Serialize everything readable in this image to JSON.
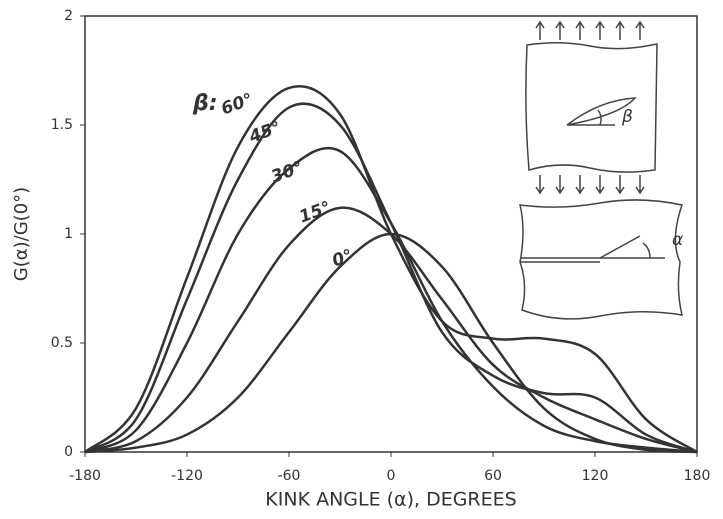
{
  "chart_data": {
    "type": "line",
    "x_label": "KINK ANGLE (α), DEGREES",
    "y_label": "G(α)/G(0°)",
    "series_label_prefix": "β:",
    "inset_labels": [
      "β",
      "α"
    ],
    "x": [
      -180,
      -150,
      -120,
      -90,
      -60,
      -30,
      0,
      30,
      60,
      90,
      120,
      150,
      180
    ],
    "series": [
      {
        "name": "0°",
        "color": "#333333",
        "values": [
          0,
          0.02,
          0.08,
          0.25,
          0.55,
          0.85,
          1.0,
          0.85,
          0.5,
          0.2,
          0.06,
          0.01,
          0
        ]
      },
      {
        "name": "15°",
        "color": "#333333",
        "values": [
          0,
          0.05,
          0.25,
          0.6,
          0.95,
          1.12,
          1.0,
          0.7,
          0.4,
          0.25,
          0.15,
          0.06,
          0
        ]
      },
      {
        "name": "30°",
        "color": "#333333",
        "values": [
          0,
          0.1,
          0.5,
          1.0,
          1.3,
          1.38,
          1.05,
          0.6,
          0.3,
          0.12,
          0.05,
          0.02,
          0
        ]
      },
      {
        "name": "45°",
        "color": "#333333",
        "values": [
          0,
          0.15,
          0.7,
          1.25,
          1.58,
          1.5,
          1.05,
          0.55,
          0.35,
          0.27,
          0.25,
          0.08,
          0
        ]
      },
      {
        "name": "60°",
        "color": "#333333",
        "values": [
          0,
          0.2,
          0.8,
          1.4,
          1.67,
          1.55,
          1.0,
          0.6,
          0.52,
          0.52,
          0.45,
          0.15,
          0
        ]
      }
    ],
    "xlim": [
      -180,
      180
    ],
    "ylim": [
      0,
      2
    ],
    "xticks": [
      -180,
      -120,
      -60,
      0,
      60,
      120,
      180
    ],
    "yticks": [
      0,
      0.5,
      1,
      1.5,
      2
    ]
  }
}
